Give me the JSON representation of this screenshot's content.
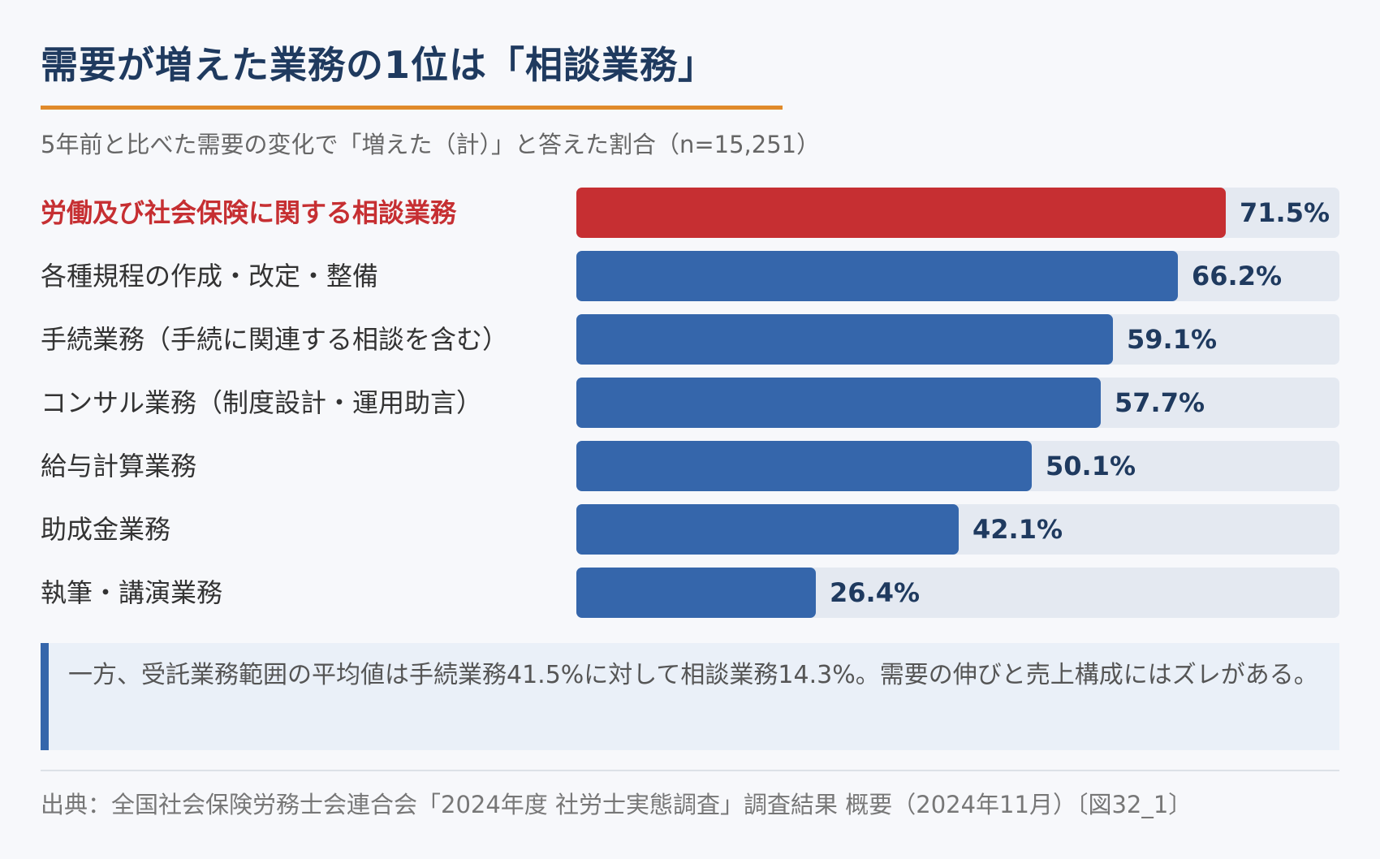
{
  "header": {
    "title": "需要が増えた業務の1位は「相談業務」",
    "subtitle": "5年前と比べた需要の変化で「増えた（計）」と答えた割合（n=15,251）"
  },
  "colors": {
    "accent_rule": "#e08a2a",
    "bar_default": "#3566ab",
    "bar_highlight": "#c62f32",
    "track": "#e4e9f1",
    "title": "#1f3a5f"
  },
  "chart_data": {
    "type": "bar",
    "orientation": "horizontal",
    "categories": [
      "労働及び社会保険に関する相談業務",
      "各種規程の作成・改定・整備",
      "手続業務（手続に関連する相談を含む）",
      "コンサル業務（制度設計・運用助言）",
      "給与計算業務",
      "助成金業務",
      "執筆・講演業務"
    ],
    "values": [
      71.5,
      66.2,
      59.1,
      57.7,
      50.1,
      42.1,
      26.4
    ],
    "value_labels": [
      "71.5%",
      "66.2%",
      "59.1%",
      "57.7%",
      "50.1%",
      "42.1%",
      "26.4%"
    ],
    "highlight_index": 0,
    "xlim": [
      0,
      84
    ],
    "unit": "%"
  },
  "note": {
    "text": "一方、受託業務範囲の平均値は手続業務41.5%に対して相談業務14.3%。需要の伸びと売上構成にはズレがある。"
  },
  "source": {
    "text": "出典：全国社会保険労務士会連合会「2024年度 社労士実態調査」調査結果 概要（2024年11月）〔図32_1〕"
  }
}
